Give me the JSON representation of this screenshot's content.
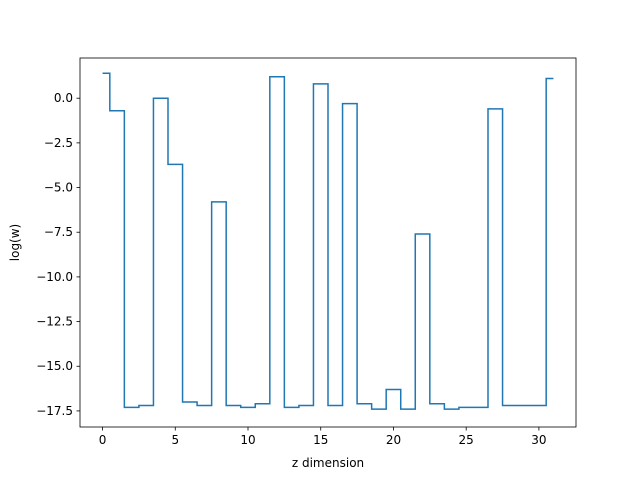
{
  "chart_data": {
    "type": "line",
    "step": "mid",
    "title": "",
    "xlabel": "z dimension",
    "ylabel": "log(w)",
    "xlim": [
      -1.55,
      32.55
    ],
    "ylim": [
      -18.4,
      2.25
    ],
    "x_ticks": [
      0,
      5,
      10,
      15,
      20,
      25,
      30
    ],
    "y_ticks": [
      0.0,
      -2.5,
      -5.0,
      -7.5,
      -10.0,
      -12.5,
      -15.0,
      -17.5
    ],
    "y_tick_labels": [
      "0.0",
      "−2.5",
      "−5.0",
      "−7.5",
      "−10.0",
      "−12.5",
      "−15.0",
      "−17.5"
    ],
    "grid": false,
    "line_color": "#1f77b4",
    "series": [
      {
        "x": [
          0,
          1,
          2,
          3,
          4,
          5,
          6,
          7,
          8,
          9,
          10,
          11,
          12,
          13,
          14,
          15,
          16,
          17,
          18,
          19,
          20,
          21,
          22,
          23,
          24,
          25,
          26,
          27,
          28,
          29,
          30,
          31
        ],
        "values": [
          1.4,
          -0.7,
          -17.3,
          -17.2,
          0.0,
          -3.7,
          -17.0,
          -17.2,
          -5.8,
          -17.2,
          -17.3,
          -17.1,
          1.2,
          -17.3,
          -17.2,
          0.8,
          -17.2,
          -0.3,
          -17.1,
          -17.4,
          -16.3,
          -17.4,
          -7.6,
          -17.1,
          -17.4,
          -17.3,
          -17.3,
          -0.6,
          -17.2,
          -17.2,
          -17.2,
          1.1
        ]
      }
    ]
  }
}
